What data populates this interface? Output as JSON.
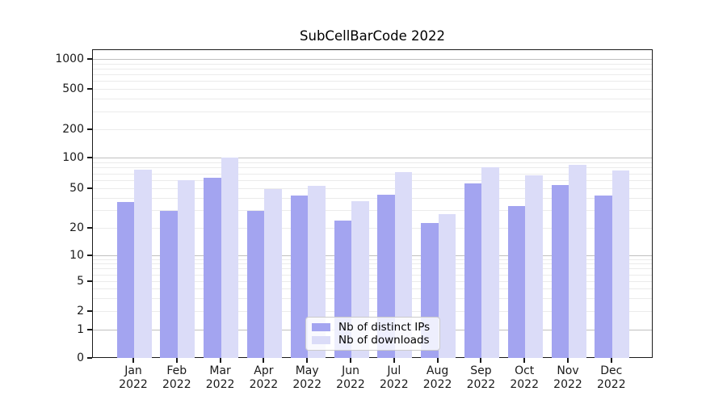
{
  "title": "SubCellBarCode 2022",
  "chart_data": {
    "type": "bar",
    "title": "SubCellBarCode 2022",
    "categories": [
      "Jan 2022",
      "Feb 2022",
      "Mar 2022",
      "Apr 2022",
      "May 2022",
      "Jun 2022",
      "Jul 2022",
      "Aug 2022",
      "Sep 2022",
      "Oct 2022",
      "Nov 2022",
      "Dec 2022"
    ],
    "series": [
      {
        "name": "Nb of distinct IPs",
        "color": "#a3a4f0",
        "values": [
          37,
          30,
          64,
          30,
          43,
          24,
          44,
          23,
          57,
          34,
          55,
          43
        ]
      },
      {
        "name": "Nb of downloads",
        "color": "#dbdcf8",
        "values": [
          77,
          61,
          103,
          50,
          54,
          38,
          74,
          28,
          82,
          68,
          86,
          76
        ]
      }
    ],
    "yscale": "symlog",
    "yticks": [
      0,
      1,
      2,
      5,
      10,
      20,
      50,
      100,
      200,
      500,
      1000
    ],
    "ylim": [
      0,
      1300
    ],
    "grid": true,
    "legend_position": "lower center",
    "xlabel": "",
    "ylabel": ""
  }
}
